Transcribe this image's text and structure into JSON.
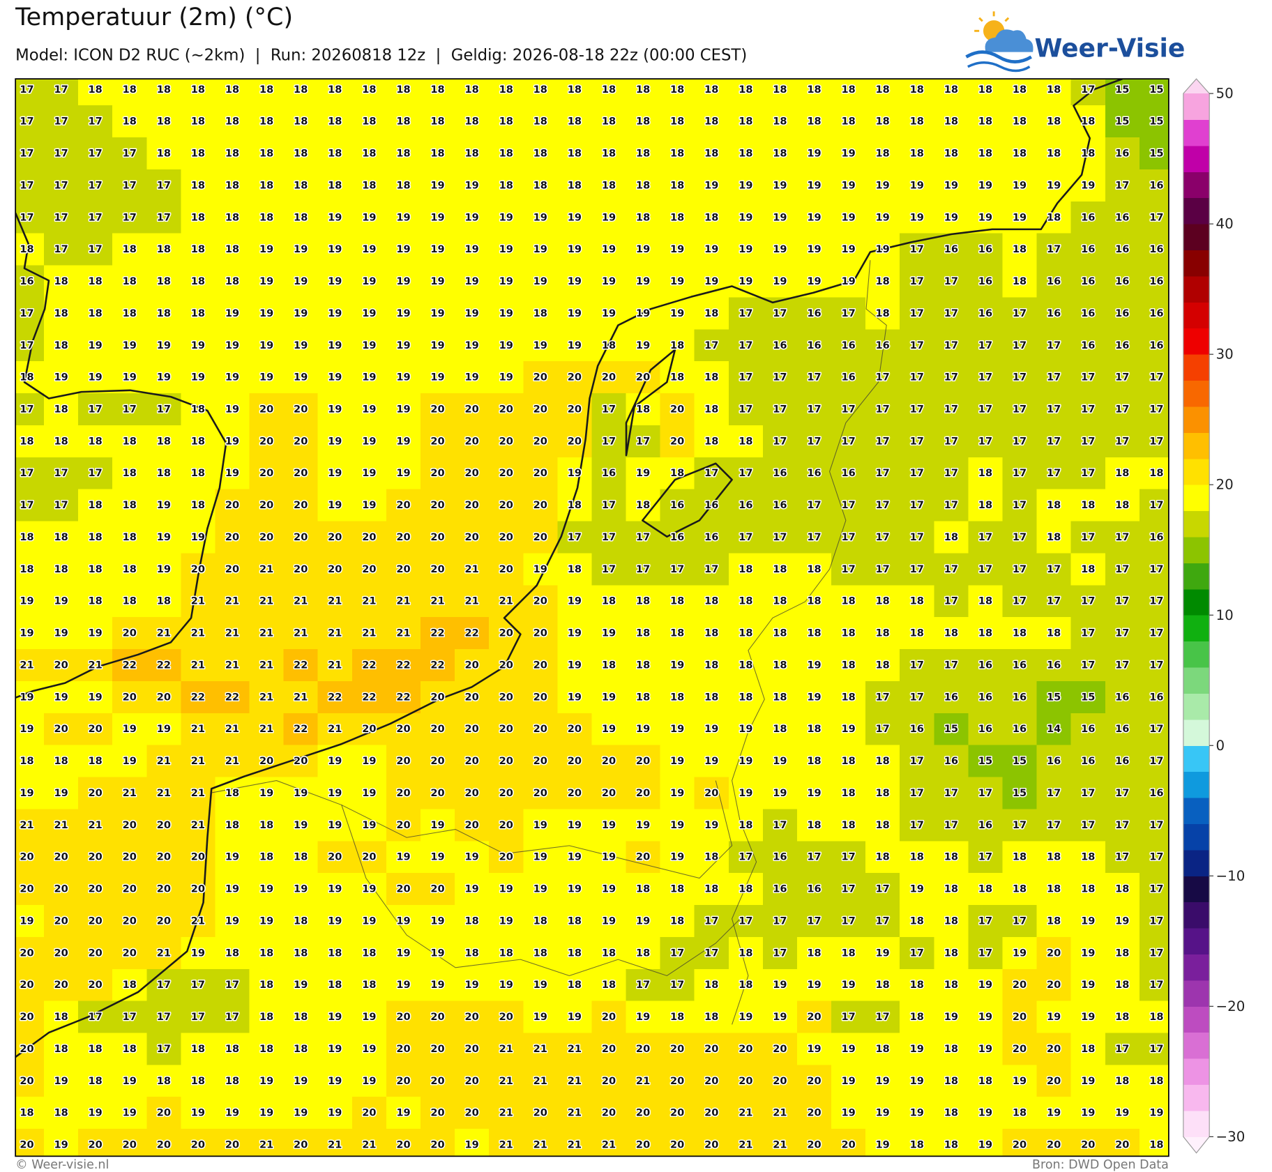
{
  "header": {
    "title": "Temperatuur (2m) (°C)",
    "subtitle": "Model: ICON D2 RUC (~2km)  |  Run: 20260818 12z  |  Geldig: 2026-08-18 22z (00:00 CEST)",
    "logo": "Weer-Visie"
  },
  "map": {
    "grid": [
      [
        17,
        17,
        18,
        18,
        18,
        18,
        18,
        18,
        18,
        18,
        18,
        18,
        18,
        18,
        18,
        18,
        18,
        18,
        18,
        18,
        18,
        18,
        18,
        18,
        18,
        18,
        18,
        18,
        18,
        18,
        18,
        17,
        15,
        15
      ],
      [
        17,
        17,
        17,
        18,
        18,
        18,
        18,
        18,
        18,
        18,
        18,
        18,
        18,
        18,
        18,
        18,
        18,
        18,
        18,
        18,
        18,
        18,
        18,
        18,
        18,
        18,
        18,
        18,
        18,
        18,
        18,
        18,
        15,
        15
      ],
      [
        17,
        17,
        17,
        17,
        18,
        18,
        18,
        18,
        18,
        18,
        18,
        18,
        18,
        18,
        18,
        18,
        18,
        18,
        18,
        18,
        18,
        18,
        18,
        19,
        19,
        18,
        18,
        18,
        18,
        18,
        18,
        18,
        16,
        15
      ],
      [
        17,
        17,
        17,
        17,
        17,
        18,
        18,
        18,
        18,
        18,
        18,
        18,
        19,
        19,
        18,
        18,
        18,
        18,
        18,
        18,
        19,
        19,
        19,
        19,
        19,
        19,
        19,
        19,
        19,
        19,
        19,
        19,
        17,
        16
      ],
      [
        17,
        17,
        17,
        17,
        17,
        18,
        18,
        18,
        18,
        19,
        19,
        19,
        19,
        19,
        19,
        19,
        19,
        19,
        18,
        18,
        18,
        19,
        19,
        19,
        19,
        19,
        19,
        19,
        19,
        19,
        18,
        16,
        16,
        17
      ],
      [
        18,
        17,
        17,
        18,
        18,
        18,
        18,
        19,
        19,
        19,
        19,
        19,
        19,
        19,
        19,
        19,
        19,
        19,
        19,
        19,
        19,
        19,
        19,
        19,
        19,
        19,
        17,
        16,
        16,
        18,
        17,
        16,
        16,
        16
      ],
      [
        16,
        18,
        18,
        18,
        18,
        18,
        18,
        19,
        19,
        19,
        19,
        19,
        19,
        19,
        19,
        19,
        19,
        19,
        19,
        19,
        19,
        19,
        19,
        19,
        19,
        18,
        17,
        17,
        16,
        18,
        16,
        16,
        16,
        16
      ],
      [
        17,
        18,
        18,
        18,
        18,
        18,
        19,
        19,
        19,
        19,
        19,
        19,
        19,
        19,
        19,
        18,
        19,
        19,
        19,
        19,
        18,
        17,
        17,
        16,
        17,
        18,
        17,
        17,
        16,
        17,
        16,
        16,
        16,
        16
      ],
      [
        17,
        18,
        19,
        19,
        19,
        19,
        19,
        19,
        19,
        19,
        19,
        19,
        19,
        19,
        19,
        19,
        19,
        18,
        19,
        18,
        17,
        17,
        16,
        16,
        16,
        16,
        17,
        17,
        17,
        17,
        17,
        16,
        16,
        16
      ],
      [
        18,
        19,
        19,
        19,
        19,
        19,
        19,
        19,
        19,
        19,
        19,
        19,
        19,
        19,
        19,
        20,
        20,
        20,
        20,
        18,
        18,
        17,
        17,
        17,
        16,
        17,
        17,
        17,
        17,
        17,
        17,
        17,
        17,
        17
      ],
      [
        17,
        18,
        17,
        17,
        17,
        18,
        19,
        20,
        20,
        19,
        19,
        19,
        20,
        20,
        20,
        20,
        20,
        17,
        18,
        20,
        18,
        17,
        17,
        17,
        17,
        17,
        17,
        17,
        17,
        17,
        17,
        17,
        17,
        17
      ],
      [
        18,
        18,
        18,
        18,
        18,
        18,
        19,
        20,
        20,
        19,
        19,
        19,
        20,
        20,
        20,
        20,
        20,
        17,
        17,
        20,
        18,
        18,
        17,
        17,
        17,
        17,
        17,
        17,
        17,
        17,
        17,
        17,
        17,
        17
      ],
      [
        17,
        17,
        17,
        18,
        18,
        18,
        19,
        20,
        20,
        19,
        19,
        19,
        20,
        20,
        20,
        20,
        19,
        16,
        19,
        18,
        17,
        17,
        16,
        16,
        16,
        17,
        17,
        17,
        18,
        17,
        17,
        17,
        18,
        18
      ],
      [
        17,
        17,
        18,
        18,
        19,
        18,
        20,
        20,
        20,
        19,
        19,
        20,
        20,
        20,
        20,
        20,
        18,
        17,
        18,
        16,
        16,
        16,
        16,
        17,
        17,
        17,
        17,
        17,
        18,
        17,
        18,
        18,
        18,
        17
      ],
      [
        18,
        18,
        18,
        18,
        19,
        19,
        20,
        20,
        20,
        20,
        20,
        20,
        20,
        20,
        20,
        20,
        17,
        17,
        17,
        16,
        16,
        17,
        17,
        17,
        17,
        17,
        17,
        18,
        17,
        17,
        18,
        17,
        17,
        16
      ],
      [
        18,
        18,
        18,
        18,
        19,
        20,
        20,
        21,
        20,
        20,
        20,
        20,
        20,
        21,
        20,
        19,
        18,
        17,
        17,
        17,
        17,
        18,
        18,
        18,
        17,
        17,
        17,
        17,
        17,
        17,
        17,
        18,
        17,
        17
      ],
      [
        19,
        19,
        18,
        18,
        18,
        21,
        21,
        21,
        21,
        21,
        21,
        21,
        21,
        21,
        21,
        20,
        19,
        18,
        18,
        18,
        18,
        18,
        18,
        18,
        18,
        18,
        18,
        17,
        18,
        17,
        17,
        17,
        17,
        17
      ],
      [
        19,
        19,
        19,
        20,
        21,
        21,
        21,
        21,
        21,
        21,
        21,
        21,
        22,
        22,
        20,
        20,
        19,
        19,
        18,
        18,
        18,
        18,
        18,
        18,
        18,
        18,
        18,
        18,
        18,
        18,
        18,
        17,
        17,
        17
      ],
      [
        21,
        20,
        21,
        22,
        22,
        21,
        21,
        21,
        22,
        21,
        22,
        22,
        22,
        20,
        20,
        20,
        19,
        18,
        18,
        19,
        18,
        18,
        18,
        19,
        18,
        18,
        17,
        17,
        16,
        16,
        16,
        17,
        17,
        17
      ],
      [
        19,
        19,
        19,
        20,
        20,
        22,
        22,
        21,
        21,
        22,
        22,
        22,
        20,
        20,
        20,
        20,
        19,
        19,
        18,
        18,
        18,
        18,
        18,
        19,
        18,
        17,
        17,
        16,
        16,
        16,
        15,
        15,
        16,
        16
      ],
      [
        19,
        20,
        20,
        19,
        19,
        21,
        21,
        21,
        22,
        21,
        20,
        20,
        20,
        20,
        20,
        20,
        20,
        19,
        19,
        19,
        19,
        19,
        18,
        18,
        19,
        17,
        16,
        15,
        16,
        16,
        14,
        16,
        16,
        17
      ],
      [
        18,
        18,
        18,
        19,
        21,
        21,
        21,
        20,
        20,
        19,
        19,
        20,
        20,
        20,
        20,
        20,
        20,
        20,
        20,
        19,
        19,
        19,
        19,
        18,
        18,
        18,
        17,
        16,
        15,
        15,
        16,
        16,
        16,
        17
      ],
      [
        19,
        19,
        20,
        21,
        21,
        21,
        18,
        19,
        19,
        19,
        19,
        20,
        20,
        20,
        20,
        20,
        20,
        20,
        20,
        19,
        20,
        19,
        19,
        19,
        18,
        18,
        17,
        17,
        17,
        15,
        17,
        17,
        17,
        16
      ],
      [
        21,
        21,
        21,
        20,
        20,
        21,
        18,
        18,
        19,
        19,
        19,
        20,
        19,
        20,
        20,
        19,
        19,
        19,
        19,
        19,
        19,
        18,
        17,
        18,
        18,
        18,
        17,
        17,
        16,
        17,
        17,
        17,
        17,
        17
      ],
      [
        20,
        20,
        20,
        20,
        20,
        20,
        19,
        18,
        18,
        20,
        20,
        19,
        19,
        19,
        20,
        19,
        19,
        19,
        20,
        19,
        18,
        17,
        16,
        17,
        17,
        18,
        18,
        18,
        17,
        18,
        18,
        18,
        17,
        17
      ],
      [
        20,
        20,
        20,
        20,
        20,
        20,
        19,
        19,
        19,
        19,
        19,
        20,
        20,
        19,
        19,
        19,
        19,
        19,
        18,
        18,
        18,
        18,
        16,
        16,
        17,
        17,
        19,
        18,
        18,
        18,
        18,
        18,
        18,
        17
      ],
      [
        19,
        20,
        20,
        20,
        20,
        21,
        19,
        19,
        18,
        19,
        19,
        19,
        19,
        18,
        19,
        18,
        18,
        19,
        19,
        18,
        17,
        17,
        17,
        17,
        17,
        17,
        18,
        18,
        17,
        17,
        18,
        19,
        19,
        17
      ],
      [
        20,
        20,
        20,
        20,
        21,
        19,
        18,
        18,
        18,
        18,
        18,
        19,
        19,
        18,
        18,
        18,
        18,
        18,
        18,
        17,
        17,
        18,
        17,
        18,
        18,
        19,
        17,
        18,
        17,
        19,
        20,
        19,
        18,
        17
      ],
      [
        20,
        20,
        20,
        18,
        17,
        17,
        17,
        18,
        19,
        18,
        18,
        19,
        19,
        19,
        19,
        19,
        18,
        18,
        17,
        17,
        18,
        18,
        19,
        19,
        19,
        18,
        18,
        18,
        19,
        20,
        20,
        19,
        18,
        17
      ],
      [
        20,
        18,
        17,
        17,
        17,
        17,
        17,
        18,
        18,
        19,
        19,
        20,
        20,
        20,
        20,
        19,
        19,
        20,
        19,
        18,
        18,
        19,
        19,
        20,
        17,
        17,
        18,
        19,
        19,
        20,
        19,
        19,
        18,
        18
      ],
      [
        20,
        18,
        18,
        18,
        17,
        18,
        18,
        18,
        18,
        19,
        19,
        20,
        20,
        20,
        21,
        21,
        21,
        20,
        20,
        20,
        20,
        20,
        20,
        19,
        19,
        18,
        19,
        18,
        19,
        20,
        20,
        18,
        17,
        17
      ],
      [
        20,
        19,
        18,
        19,
        18,
        18,
        18,
        19,
        19,
        19,
        19,
        20,
        20,
        20,
        21,
        21,
        21,
        20,
        21,
        20,
        20,
        20,
        20,
        20,
        19,
        19,
        19,
        18,
        18,
        19,
        20,
        19,
        18,
        18
      ],
      [
        18,
        18,
        19,
        19,
        20,
        19,
        19,
        19,
        19,
        19,
        20,
        19,
        20,
        20,
        21,
        20,
        21,
        20,
        20,
        20,
        20,
        21,
        21,
        20,
        19,
        19,
        19,
        18,
        19,
        18,
        19,
        19,
        19,
        19
      ],
      [
        20,
        19,
        20,
        20,
        20,
        20,
        20,
        21,
        20,
        21,
        21,
        20,
        20,
        19,
        21,
        21,
        21,
        21,
        20,
        20,
        20,
        21,
        21,
        20,
        20,
        19,
        18,
        18,
        19,
        20,
        20,
        20,
        20,
        18
      ]
    ],
    "colorbar": {
      "ylim": [
        -30,
        50
      ],
      "yticks": [
        50,
        40,
        30,
        20,
        10,
        0,
        {
          "value": -10,
          "label": "−10"
        },
        {
          "value": -20,
          "label": "−20"
        },
        {
          "value": -30,
          "label": "−30"
        }
      ],
      "colors": [
        "#fde0f8",
        "#f8b8ee",
        "#ed93e4",
        "#d96fd4",
        "#bd4cc0",
        "#9d35ae",
        "#7a1f9c",
        "#561388",
        "#3a0c6a",
        "#170a45",
        "#0a2484",
        "#0642a8",
        "#0860c0",
        "#0f9ade",
        "#38c6f6",
        "#d4f8da",
        "#a9eaa9",
        "#7cd87c",
        "#48c448",
        "#10b010",
        "#008a00",
        "#3fa80f",
        "#8cc400",
        "#c8d700",
        "#ffff00",
        "#ffe100",
        "#ffbf00",
        "#fb9100",
        "#f86800",
        "#f54000",
        "#ee0000",
        "#d40000",
        "#b00000",
        "#880000",
        "#5c0020",
        "#5a0044",
        "#8a006a",
        "#c000a8",
        "#e040d0",
        "#f7a4df"
      ]
    }
  },
  "footer": {
    "left": "© Weer-visie.nl",
    "right": "Bron: DWD Open Data"
  }
}
